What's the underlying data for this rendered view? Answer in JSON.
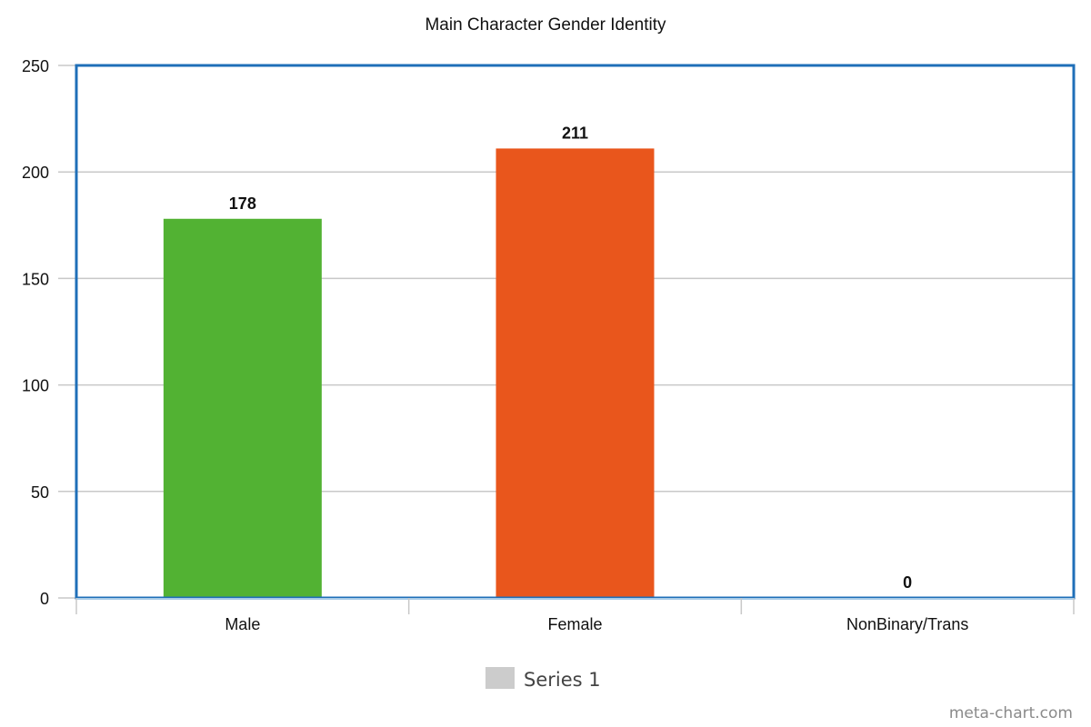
{
  "chart_data": {
    "type": "bar",
    "title": "Main Character Gender Identity",
    "xlabel": "",
    "ylabel": "",
    "categories": [
      "Male",
      "Female",
      "NonBinary/Trans"
    ],
    "series": [
      {
        "name": "Series 1",
        "values": [
          178,
          211,
          0
        ],
        "data_labels": [
          "178",
          "211",
          "0"
        ]
      }
    ],
    "colors": [
      "#52b233",
      "#e9561c",
      "#5b8fd6"
    ],
    "ylim": [
      0,
      250
    ],
    "yticks": [
      0,
      50,
      100,
      150,
      200,
      250
    ],
    "grid": true,
    "legend": {
      "position": "bottom",
      "swatch_color": "#cccccc"
    },
    "plot_border_color": "#1f6fb8",
    "gridline_color": "#c8c8c8"
  },
  "watermark": "meta-chart.com"
}
